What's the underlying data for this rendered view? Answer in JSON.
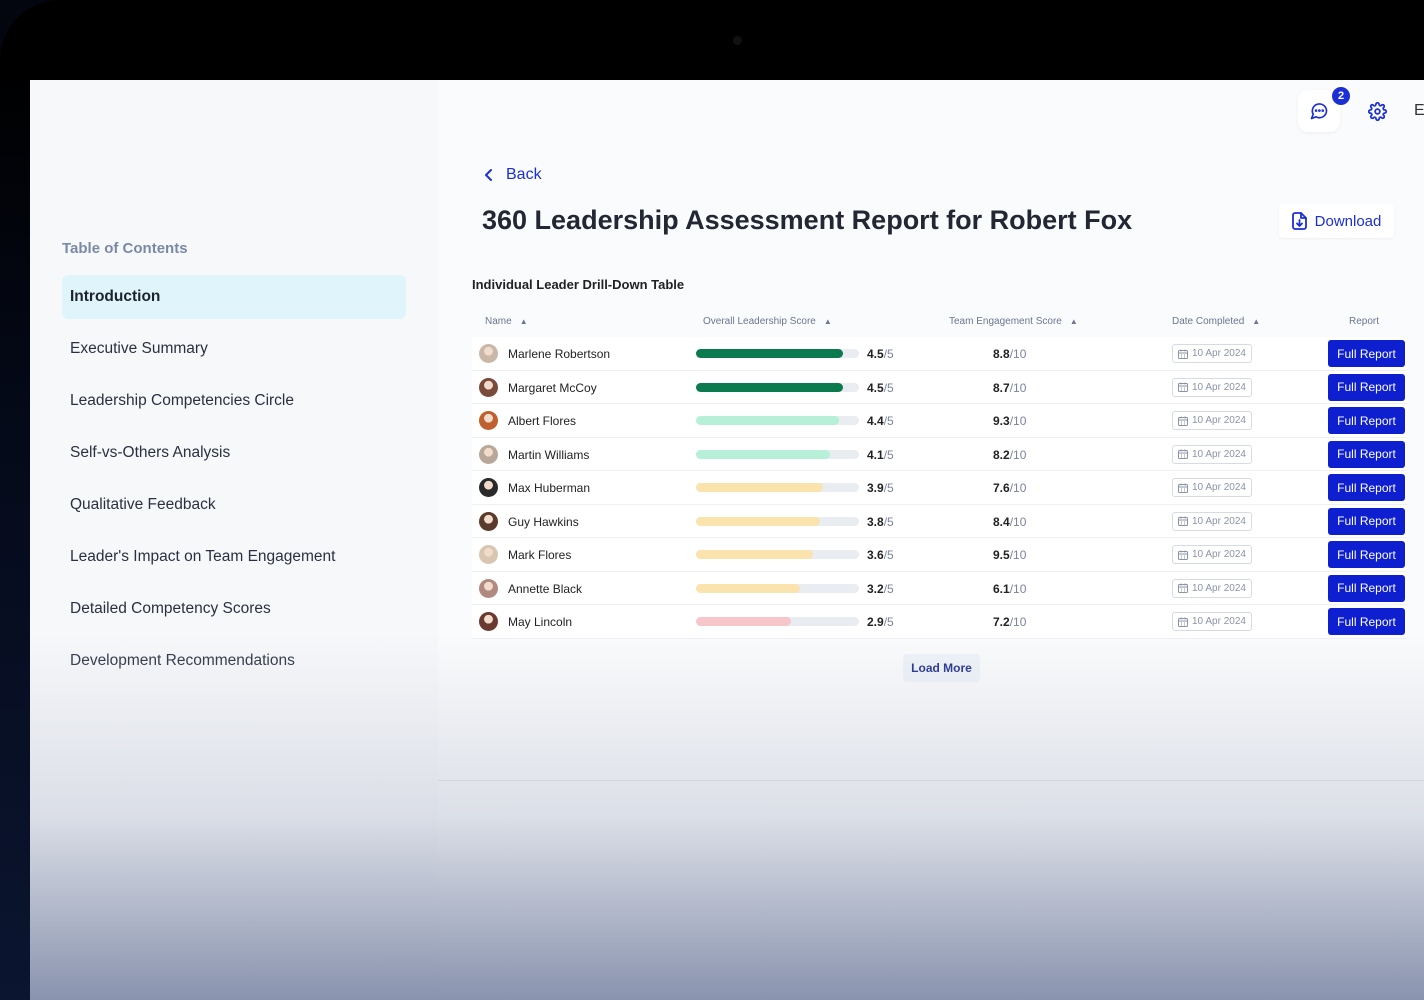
{
  "header": {
    "notification_count": "2",
    "edge_letter": "E",
    "back_label": "Back",
    "title": "360 Leadership Assessment Report for Robert Fox",
    "download_label": "Download"
  },
  "sidebar": {
    "title": "Table of Contents",
    "items": [
      {
        "label": "Introduction"
      },
      {
        "label": "Executive Summary"
      },
      {
        "label": "Leadership Competencies Circle"
      },
      {
        "label": "Self-vs-Others Analysis"
      },
      {
        "label": "Qualitative Feedback"
      },
      {
        "label": "Leader's Impact on Team Engagement"
      },
      {
        "label": "Detailed Competency Scores"
      },
      {
        "label": "Development Recommendations"
      }
    ]
  },
  "table": {
    "title": "Individual Leader Drill-Down Table",
    "columns": {
      "name": "Name",
      "overall": "Overall Leadership Score",
      "engagement": "Team Engagement Score",
      "date": "Date Completed",
      "report": "Report"
    },
    "score_max": "/5",
    "engagement_max": "/10",
    "report_label": "Full Report",
    "rows": [
      {
        "name": "Marlene Robertson",
        "score": "4.5",
        "score_value": 4.5,
        "engagement": "8.8",
        "date": "10 Apr 2024",
        "bar_color": "#0b7a4f",
        "avatar_color": "#c9b8a8"
      },
      {
        "name": "Margaret McCoy",
        "score": "4.5",
        "score_value": 4.5,
        "engagement": "8.7",
        "date": "10 Apr 2024",
        "bar_color": "#0b7a4f",
        "avatar_color": "#7a4a3a"
      },
      {
        "name": "Albert Flores",
        "score": "4.4",
        "score_value": 4.4,
        "engagement": "9.3",
        "date": "10 Apr 2024",
        "bar_color": "#b6f0d8",
        "avatar_color": "#c0602e"
      },
      {
        "name": "Martin Williams",
        "score": "4.1",
        "score_value": 4.1,
        "engagement": "8.2",
        "date": "10 Apr 2024",
        "bar_color": "#b6f0d8",
        "avatar_color": "#b8a89a"
      },
      {
        "name": "Max Huberman",
        "score": "3.9",
        "score_value": 3.9,
        "engagement": "7.6",
        "date": "10 Apr 2024",
        "bar_color": "#fae3ad",
        "avatar_color": "#2a2a2a"
      },
      {
        "name": "Guy Hawkins",
        "score": "3.8",
        "score_value": 3.8,
        "engagement": "8.4",
        "date": "10 Apr 2024",
        "bar_color": "#fae3ad",
        "avatar_color": "#5a3a2a"
      },
      {
        "name": "Mark Flores",
        "score": "3.6",
        "score_value": 3.6,
        "engagement": "9.5",
        "date": "10 Apr 2024",
        "bar_color": "#fae3ad",
        "avatar_color": "#d9c6b0"
      },
      {
        "name": "Annette Black",
        "score": "3.2",
        "score_value": 3.2,
        "engagement": "6.1",
        "date": "10 Apr 2024",
        "bar_color": "#fae3ad",
        "avatar_color": "#b08a80"
      },
      {
        "name": "May Lincoln",
        "score": "2.9",
        "score_value": 2.9,
        "engagement": "7.2",
        "date": "10 Apr 2024",
        "bar_color": "#f7c6cb",
        "avatar_color": "#6a3a30"
      }
    ],
    "load_more_label": "Load More"
  },
  "colors": {
    "accent": "#1a2fd6",
    "report_button": "#0d1fcf"
  }
}
